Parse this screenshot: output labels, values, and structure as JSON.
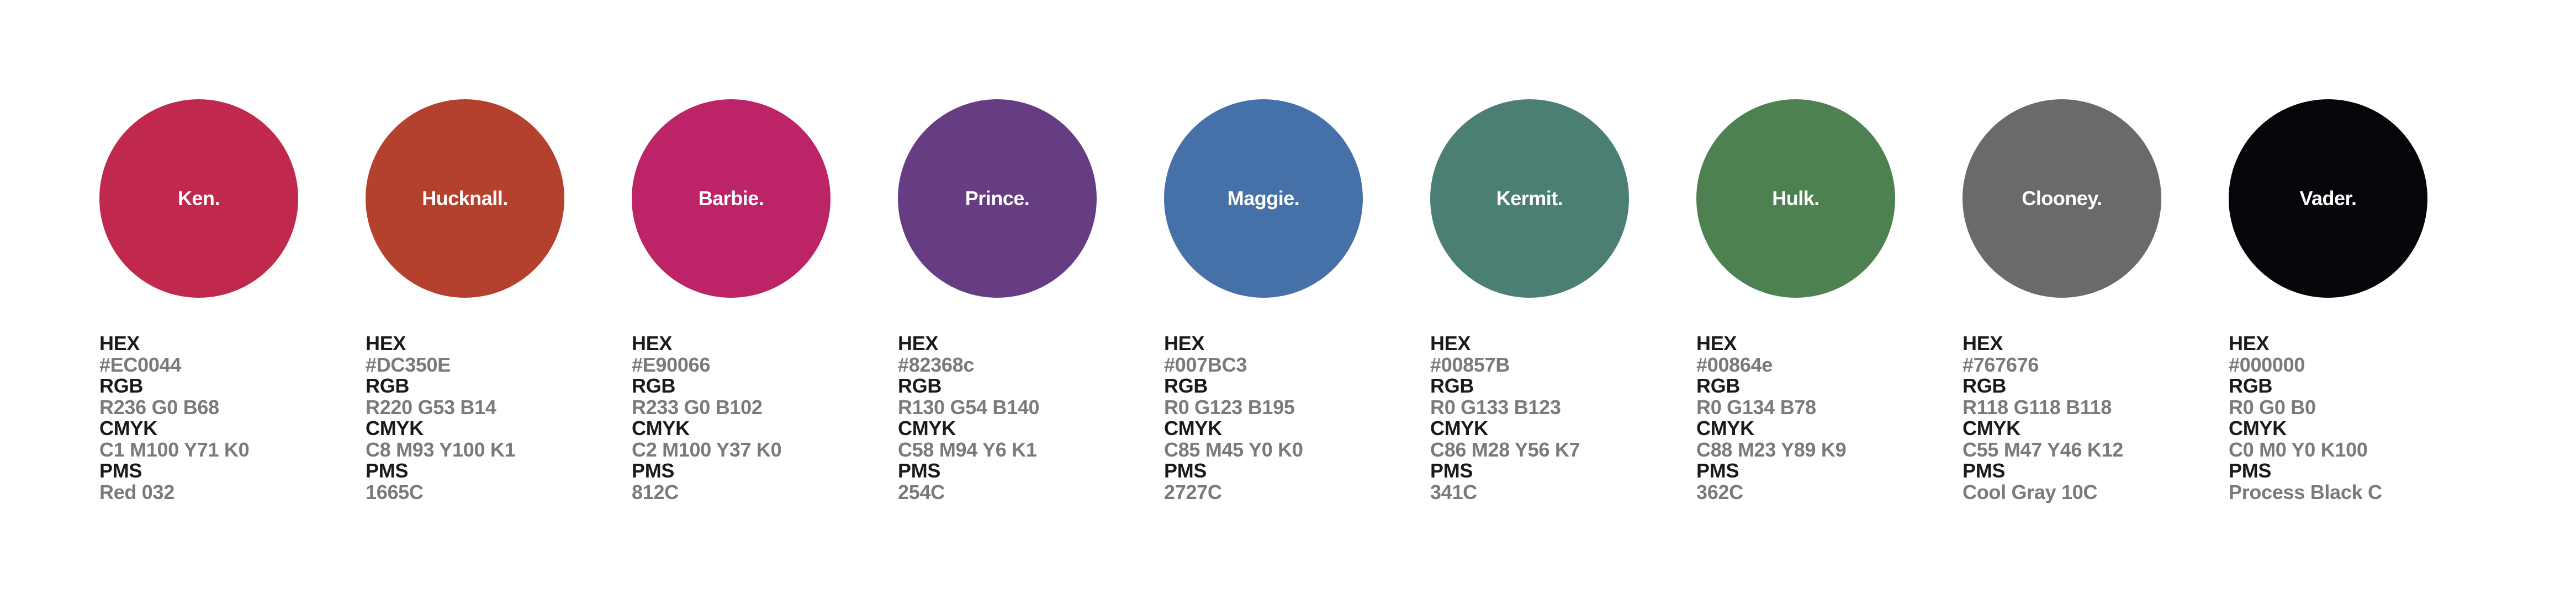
{
  "swatches": [
    {
      "name": "Ken.",
      "color": "#C0284E",
      "hex": "#EC0044",
      "rgb": "R236 G0 B68",
      "cmyk": "C1 M100 Y71 K0",
      "pms": "Red 032"
    },
    {
      "name": "Hucknall.",
      "color": "#B4402E",
      "hex": "#DC350E",
      "rgb": "R220 G53 B14",
      "cmyk": "C8 M93 Y100 K1",
      "pms": "1665C"
    },
    {
      "name": "Barbie.",
      "color": "#BC2467",
      "hex": "#E90066",
      "rgb": "R233 G0 B102",
      "cmyk": "C2 M100 Y37 K0",
      "pms": "812C"
    },
    {
      "name": "Prince.",
      "color": "#663D83",
      "hex": "#82368c",
      "rgb": "R130 G54 B140",
      "cmyk": "C58 M94 Y6 K1",
      "pms": "254C"
    },
    {
      "name": "Maggie.",
      "color": "#4671A8",
      "hex": "#007BC3",
      "rgb": "R0 G123 B195",
      "cmyk": "C85 M45 Y0 K0",
      "pms": "2727C"
    },
    {
      "name": "Kermit.",
      "color": "#4B7F73",
      "hex": "#00857B",
      "rgb": "R0 G133 B123",
      "cmyk": "C86 M28 Y56 K7",
      "pms": "341C"
    },
    {
      "name": "Hulk.",
      "color": "#4D8152",
      "hex": "#00864e",
      "rgb": "R0 G134 B78",
      "cmyk": "C88 M23 Y89 K9",
      "pms": "362C"
    },
    {
      "name": "Clooney.",
      "color": "#6A6B69",
      "hex": "#767676",
      "rgb": "R118 G118 B118",
      "cmyk": "C55 M47 Y46 K12",
      "pms": "Cool Gray 10C"
    },
    {
      "name": "Vader.",
      "color": "#050609",
      "hex": "#000000",
      "rgb": "R0 G0 B0",
      "cmyk": "C0 M0 Y0 K100",
      "pms": "Process Black C"
    }
  ],
  "labels": {
    "hex": "HEX",
    "rgb": "RGB",
    "cmyk": "CMYK",
    "pms": "PMS"
  }
}
